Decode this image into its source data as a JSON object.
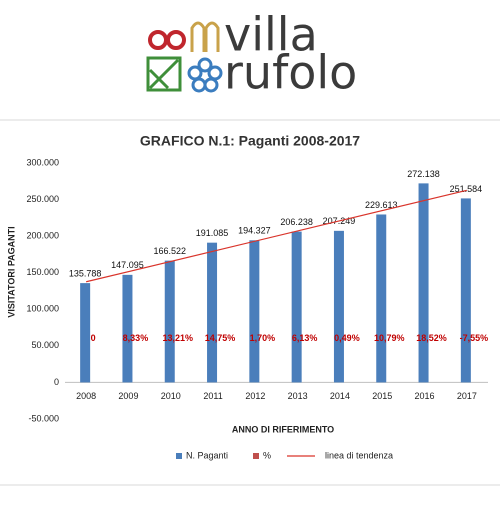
{
  "logo": {
    "line1": "villa",
    "line2": "rufolo"
  },
  "chart_data": {
    "type": "bar",
    "title": "GRAFICO N.1: Paganti 2008-2017",
    "x_label": "ANNO DI RIFERIMENTO",
    "y_label": "VISITATORI PAGANTI",
    "categories": [
      "2008",
      "2009",
      "2010",
      "2011",
      "2012",
      "2013",
      "2014",
      "2015",
      "2016",
      "2017"
    ],
    "series": [
      {
        "name": "N. Paganti",
        "color": "#4a7ebb",
        "values": [
          135788,
          147095,
          166522,
          191085,
          194327,
          206238,
          207249,
          229613,
          272138,
          251584
        ],
        "value_labels": [
          "135.788",
          "147.095",
          "166.522",
          "191.085",
          "194.327",
          "206.238",
          "207.249",
          "229.613",
          "272.138",
          "251.584"
        ]
      },
      {
        "name": "%",
        "color": "#c0504d",
        "values": [
          0,
          8.33,
          13.21,
          14.75,
          1.7,
          6.13,
          0.49,
          10.79,
          18.52,
          -7.55
        ],
        "value_labels": [
          "0",
          "8,33%",
          "13,21%",
          "14,75%",
          "1,70%",
          "6,13%",
          "0,49%",
          "10,79%",
          "18,52%",
          "-7,55%"
        ]
      }
    ],
    "trendline": {
      "name": "linea di tendenza",
      "series": 0,
      "kind": "linear",
      "color": "#d9342b"
    },
    "ylim": [
      -50000,
      300000
    ],
    "yticks": [
      {
        "value": -50000,
        "label": "-50.000"
      },
      0,
      {
        "value": 50000,
        "label": "50.000"
      },
      {
        "value": 100000,
        "label": "100.000"
      },
      {
        "value": 150000,
        "label": "150.000"
      },
      {
        "value": 200000,
        "label": "200.000"
      },
      {
        "value": 250000,
        "label": "250.000"
      },
      {
        "value": 300000,
        "label": "300.000"
      }
    ],
    "grid": false
  }
}
